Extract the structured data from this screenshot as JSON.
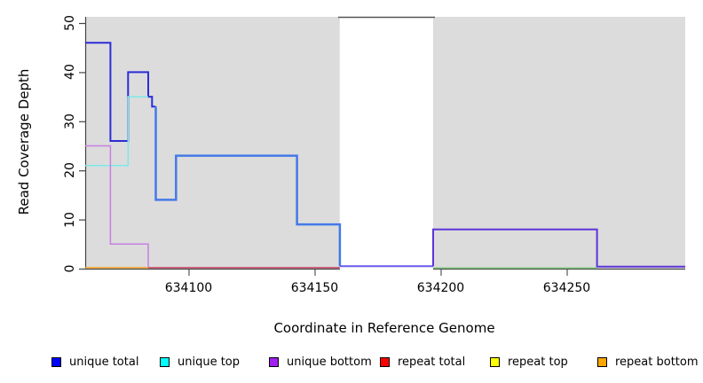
{
  "chart_data": {
    "type": "line",
    "title": "",
    "xlabel": "Coordinate in Reference Genome",
    "ylabel": "Read Coverage Depth",
    "xlim": [
      634059,
      634297
    ],
    "ylim": [
      0,
      51
    ],
    "grid": false,
    "legend_position": "bottom",
    "xticks": {
      "values": [
        634100,
        634150,
        634200,
        634250
      ],
      "labels": [
        "634100",
        "634150",
        "634200",
        "634250"
      ]
    },
    "yticks": {
      "values": [
        0,
        10,
        20,
        30,
        40,
        50
      ],
      "labels": [
        "0",
        "10",
        "20",
        "30",
        "40",
        "50"
      ]
    },
    "background_regions": [
      {
        "name": "covered-region-left",
        "from": 634059,
        "to": 634160,
        "color": "#dcdcdc",
        "top_border": false
      },
      {
        "name": "gap-region",
        "from": 634160,
        "to": 634197,
        "color": "#ffffff",
        "top_border": true
      },
      {
        "name": "covered-region-right",
        "from": 634197,
        "to": 634297,
        "color": "#dcdcdc",
        "top_border": false
      }
    ],
    "series": [
      {
        "name": "unique-total-left",
        "color": "#2c2cd8",
        "width": 2,
        "levels": [
          [
            634059,
            634069,
            46
          ],
          [
            634069,
            634076,
            26
          ],
          [
            634076,
            634084,
            40
          ],
          [
            634084,
            634085.5,
            35
          ],
          [
            634085.5,
            634087,
            33
          ]
        ]
      },
      {
        "name": "unique-total-over-unique-top",
        "color": "#4479e8",
        "width": 2.5,
        "levels": [
          [
            634087,
            634087,
            33
          ],
          [
            634087,
            634095,
            14
          ],
          [
            634095,
            634143,
            23
          ],
          [
            634143,
            634160,
            9
          ],
          [
            634160,
            634160,
            0.5
          ]
        ]
      },
      {
        "name": "unique-top",
        "color": "#7de8e8",
        "width": 1.5,
        "levels": [
          [
            634059,
            634076,
            21
          ],
          [
            634076,
            634084,
            35
          ]
        ]
      },
      {
        "name": "unique-bottom-left",
        "color": "#c77fe3",
        "width": 1.5,
        "levels": [
          [
            634059,
            634069,
            25
          ],
          [
            634069,
            634084,
            5
          ],
          [
            634084,
            634084,
            0.2
          ]
        ]
      },
      {
        "name": "repeat-bottom-baseline",
        "color": "#ffa526",
        "width": 1.5,
        "levels": [
          [
            634059,
            634084,
            0.2
          ]
        ]
      },
      {
        "name": "repeat-total-baseline",
        "color": "#cd4769",
        "width": 1.5,
        "levels": [
          [
            634084,
            634160,
            0.2
          ]
        ]
      },
      {
        "name": "unique-line-through-gap",
        "color": "#6a5ae8",
        "width": 2,
        "levels": [
          [
            634160,
            634197,
            0.5
          ]
        ]
      },
      {
        "name": "unique-total-and-bottom-after-gap",
        "color": "#5b35d8",
        "width": 2,
        "levels": [
          [
            634197,
            634197,
            0.5
          ],
          [
            634197,
            634262,
            8
          ],
          [
            634262,
            634297,
            0.4
          ]
        ]
      },
      {
        "name": "baseline-after-gap",
        "color": "#77c377",
        "width": 1.5,
        "levels": [
          [
            634197,
            634262,
            0.1
          ]
        ]
      }
    ],
    "legend": [
      {
        "label": "unique total",
        "color": "#0000ff"
      },
      {
        "label": "unique top",
        "color": "#00ffff"
      },
      {
        "label": "unique bottom",
        "color": "#a020f0"
      },
      {
        "label": "repeat total",
        "color": "#ff0000"
      },
      {
        "label": "repeat top",
        "color": "#ffff00"
      },
      {
        "label": "repeat bottom",
        "color": "#ffa500"
      }
    ]
  }
}
